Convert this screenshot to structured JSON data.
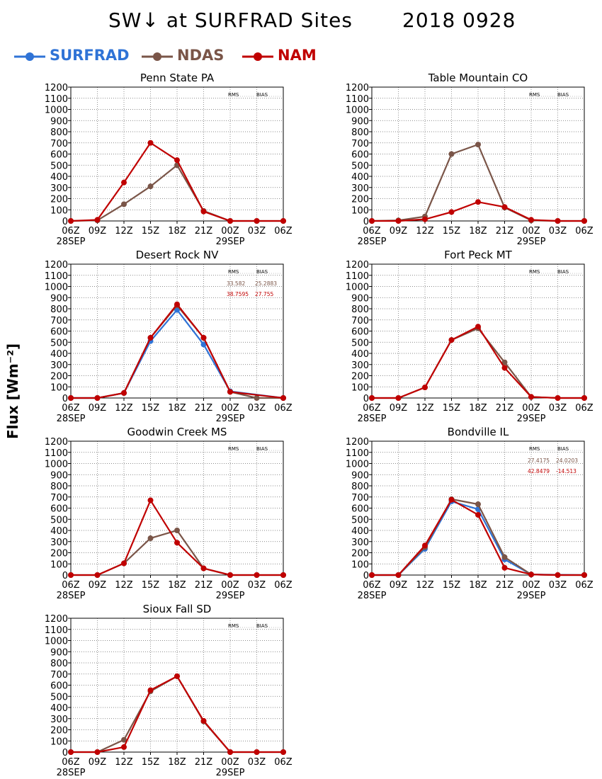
{
  "title": {
    "left": "SW↓ at SURFRAD Sites",
    "right": "2018 0928"
  },
  "ylabel": "Flux [Wm⁻²]",
  "legend": [
    {
      "name": "SURFRAD",
      "color": "#2f73d6"
    },
    {
      "name": "NDAS",
      "color": "#7a5548"
    },
    {
      "name": "NAM",
      "color": "#c00000"
    }
  ],
  "chart_data": [
    {
      "type": "line",
      "title": "Penn State PA",
      "x": [
        "06Z",
        "09Z",
        "12Z",
        "15Z",
        "18Z",
        "21Z",
        "00Z",
        "03Z",
        "06Z"
      ],
      "date_labels": [
        "28SEP",
        "29SEP"
      ],
      "ylim": [
        0,
        1200
      ],
      "yticks": [
        0,
        100,
        200,
        300,
        400,
        500,
        600,
        700,
        800,
        900,
        1000,
        1100,
        1200
      ],
      "stats_header": [
        "RMS",
        "BIAS"
      ],
      "stats": [],
      "series": [
        {
          "name": "NDAS",
          "values": [
            0,
            5,
            150,
            310,
            500,
            90,
            0,
            0,
            0
          ]
        },
        {
          "name": "NAM",
          "values": [
            0,
            10,
            345,
            700,
            545,
            85,
            0,
            0,
            0
          ]
        }
      ]
    },
    {
      "type": "line",
      "title": "Table Mountain CO",
      "x": [
        "06Z",
        "09Z",
        "12Z",
        "15Z",
        "18Z",
        "21Z",
        "00Z",
        "03Z",
        "06Z"
      ],
      "date_labels": [
        "28SEP",
        "29SEP"
      ],
      "ylim": [
        0,
        1200
      ],
      "yticks": [
        0,
        100,
        200,
        300,
        400,
        500,
        600,
        700,
        800,
        900,
        1000,
        1100,
        1200
      ],
      "stats_header": [
        "RMS",
        "BIAS"
      ],
      "stats": [],
      "series": [
        {
          "name": "NDAS",
          "values": [
            0,
            5,
            40,
            600,
            685,
            120,
            5,
            0,
            0
          ]
        },
        {
          "name": "NAM",
          "values": [
            0,
            0,
            15,
            80,
            170,
            125,
            10,
            0,
            0
          ]
        }
      ]
    },
    {
      "type": "line",
      "title": "Desert Rock NV",
      "x": [
        "06Z",
        "09Z",
        "12Z",
        "15Z",
        "18Z",
        "21Z",
        "00Z",
        "03Z",
        "06Z"
      ],
      "date_labels": [
        "28SEP",
        "29SEP"
      ],
      "ylim": [
        0,
        1200
      ],
      "yticks": [
        0,
        100,
        200,
        300,
        400,
        500,
        600,
        700,
        800,
        900,
        1000,
        1100,
        1200
      ],
      "stats_header": [
        "RMS",
        "BIAS"
      ],
      "stats": [
        {
          "series": "NDAS",
          "rms": "33.582",
          "bias": "25.2883"
        },
        {
          "series": "NAM",
          "rms": "38.7595",
          "bias": "27.755"
        }
      ],
      "series": [
        {
          "name": "SURFRAD",
          "values": [
            0,
            0,
            45,
            510,
            790,
            480,
            60,
            null,
            0
          ]
        },
        {
          "name": "NDAS",
          "values": [
            0,
            0,
            45,
            540,
            830,
            540,
            55,
            0,
            0
          ]
        },
        {
          "name": "NAM",
          "values": [
            0,
            0,
            45,
            540,
            840,
            540,
            55,
            null,
            0
          ]
        }
      ]
    },
    {
      "type": "line",
      "title": "Fort Peck MT",
      "x": [
        "06Z",
        "09Z",
        "12Z",
        "15Z",
        "18Z",
        "21Z",
        "00Z",
        "03Z",
        "06Z"
      ],
      "date_labels": [
        "28SEP",
        "29SEP"
      ],
      "ylim": [
        0,
        1200
      ],
      "yticks": [
        0,
        100,
        200,
        300,
        400,
        500,
        600,
        700,
        800,
        900,
        1000,
        1100,
        1200
      ],
      "stats_header": [
        "RMS",
        "BIAS"
      ],
      "stats": [],
      "series": [
        {
          "name": "NDAS",
          "values": [
            0,
            0,
            95,
            520,
            625,
            320,
            10,
            0,
            0
          ]
        },
        {
          "name": "NAM",
          "values": [
            0,
            0,
            95,
            520,
            640,
            270,
            10,
            0,
            0
          ]
        }
      ]
    },
    {
      "type": "line",
      "title": "Goodwin Creek MS",
      "x": [
        "06Z",
        "09Z",
        "12Z",
        "15Z",
        "18Z",
        "21Z",
        "00Z",
        "03Z",
        "06Z"
      ],
      "date_labels": [
        "28SEP",
        "29SEP"
      ],
      "ylim": [
        0,
        1200
      ],
      "yticks": [
        0,
        100,
        200,
        300,
        400,
        500,
        600,
        700,
        800,
        900,
        1000,
        1100,
        1200
      ],
      "stats_header": [
        "RMS",
        "BIAS"
      ],
      "stats": [],
      "series": [
        {
          "name": "NDAS",
          "values": [
            0,
            0,
            105,
            330,
            400,
            60,
            0,
            0,
            0
          ]
        },
        {
          "name": "NAM",
          "values": [
            0,
            0,
            105,
            670,
            290,
            60,
            0,
            0,
            0
          ]
        }
      ]
    },
    {
      "type": "line",
      "title": "Bondville IL",
      "x": [
        "06Z",
        "09Z",
        "12Z",
        "15Z",
        "18Z",
        "21Z",
        "00Z",
        "03Z",
        "06Z"
      ],
      "date_labels": [
        "28SEP",
        "29SEP"
      ],
      "ylim": [
        0,
        1200
      ],
      "yticks": [
        0,
        100,
        200,
        300,
        400,
        500,
        600,
        700,
        800,
        900,
        1000,
        1100,
        1200
      ],
      "stats_header": [
        "RMS",
        "BIAS"
      ],
      "stats": [
        {
          "series": "NDAS",
          "rms": "27.4175",
          "bias": "24.0203"
        },
        {
          "series": "NAM",
          "rms": "42.8479",
          "bias": "-14.513"
        }
      ],
      "series": [
        {
          "name": "SURFRAD",
          "values": [
            0,
            0,
            235,
            660,
            590,
            140,
            5,
            null,
            0
          ]
        },
        {
          "name": "NDAS",
          "values": [
            0,
            0,
            250,
            680,
            635,
            160,
            5,
            0,
            0
          ]
        },
        {
          "name": "NAM",
          "values": [
            0,
            0,
            265,
            675,
            540,
            65,
            5,
            0,
            0
          ]
        }
      ]
    },
    {
      "type": "line",
      "title": "Sioux Fall SD",
      "x": [
        "06Z",
        "09Z",
        "12Z",
        "15Z",
        "18Z",
        "21Z",
        "00Z",
        "03Z",
        "06Z"
      ],
      "date_labels": [
        "28SEP",
        "29SEP"
      ],
      "ylim": [
        0,
        1200
      ],
      "yticks": [
        0,
        100,
        200,
        300,
        400,
        500,
        600,
        700,
        800,
        900,
        1000,
        1100,
        1200
      ],
      "stats_header": [
        "RMS",
        "BIAS"
      ],
      "stats": [],
      "series": [
        {
          "name": "NDAS",
          "values": [
            0,
            0,
            110,
            545,
            680,
            275,
            0,
            0,
            0
          ]
        },
        {
          "name": "NAM",
          "values": [
            0,
            0,
            45,
            555,
            680,
            280,
            0,
            0,
            0
          ]
        }
      ]
    }
  ]
}
